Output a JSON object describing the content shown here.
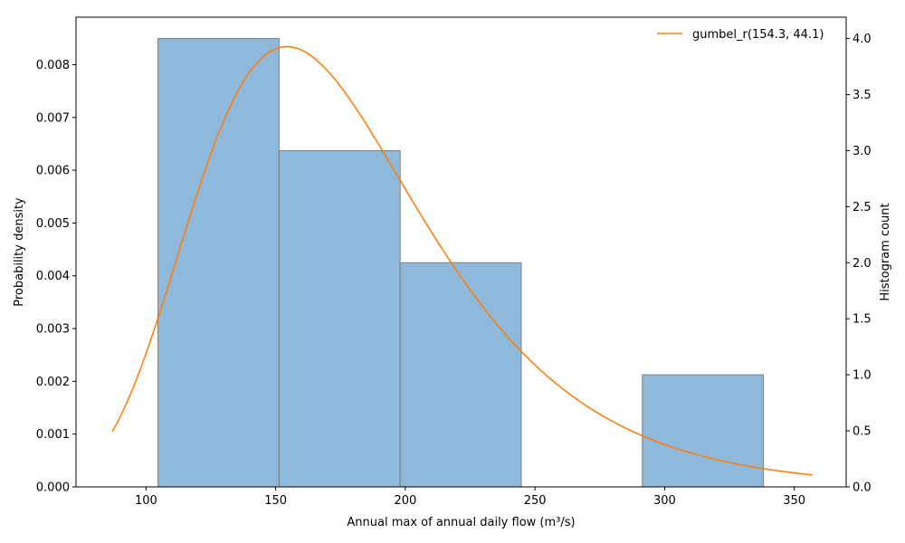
{
  "chart_data": {
    "type": "bar",
    "xlabel": "Annual max of annual daily flow  (m³/s)",
    "ylabel_left": "Probability density",
    "ylabel_right": "Histogram count",
    "xlim": [
      73,
      370
    ],
    "ylim_left": [
      0,
      0.0089
    ],
    "ylim_right": [
      0,
      4.19
    ],
    "x_ticks": [
      100,
      150,
      200,
      250,
      300,
      350
    ],
    "y_left_ticks": [
      0.0,
      0.001,
      0.002,
      0.003,
      0.004,
      0.005,
      0.006,
      0.007,
      0.008
    ],
    "y_right_ticks": [
      0.0,
      0.5,
      1.0,
      1.5,
      2.0,
      2.5,
      3.0,
      3.5,
      4.0
    ],
    "histogram": {
      "bins": [
        {
          "x0": 104.6,
          "x1": 151.3,
          "count": 4
        },
        {
          "x0": 151.3,
          "x1": 198.0,
          "count": 3
        },
        {
          "x0": 198.0,
          "x1": 244.7,
          "count": 2
        },
        {
          "x0": 244.7,
          "x1": 291.4,
          "count": 0
        },
        {
          "x0": 291.4,
          "x1": 338.1,
          "count": 1
        }
      ],
      "color": "#8fb9da",
      "edge_color": "#7f7f7f"
    },
    "fit": {
      "name": "gumbel_r(154.3, 44.1)",
      "distribution": "gumbel_r",
      "loc": 154.3,
      "scale": 44.1,
      "x_range": [
        87,
        357
      ],
      "color": "#ff7f0e"
    },
    "legend_position": "top-right",
    "grid": false
  }
}
